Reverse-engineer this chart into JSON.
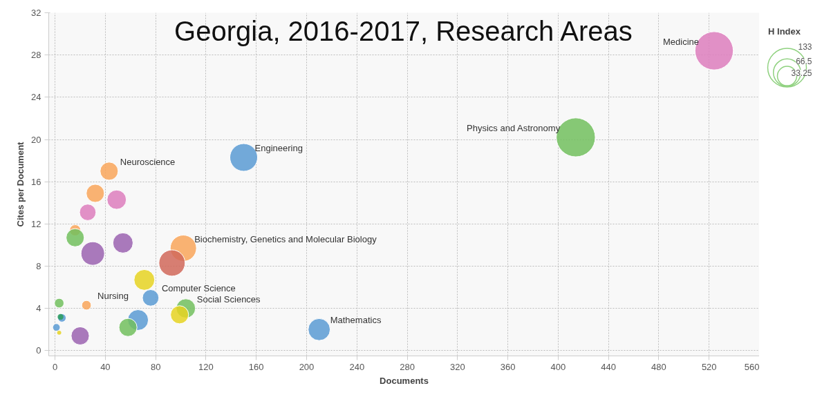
{
  "chart_data": {
    "type": "bubble",
    "title": "Georgia, 2016-2017, Research Areas",
    "xlabel": "Documents",
    "ylabel": "Cites per Document",
    "legend_title": "H Index",
    "size_legend": [
      133,
      66.5,
      33.25
    ],
    "x": [
      524,
      414,
      150,
      43,
      32,
      49,
      26,
      16,
      16,
      30,
      54,
      102,
      93,
      71,
      76,
      104,
      99,
      210,
      66,
      58,
      20,
      3.3,
      25,
      5.5,
      4.4,
      1.1,
      3.3
    ],
    "values": [
      28.4,
      20.2,
      18.3,
      17.0,
      14.9,
      14.3,
      13.1,
      11.4,
      10.7,
      9.2,
      10.2,
      9.7,
      8.3,
      6.7,
      5.0,
      4.0,
      3.4,
      2.0,
      2.9,
      2.2,
      1.4,
      4.5,
      4.3,
      3.1,
      3.2,
      2.2,
      1.7
    ],
    "sizes": [
      130,
      135,
      68,
      29,
      29,
      33,
      24,
      11,
      29,
      49,
      36,
      61,
      61,
      38,
      24,
      33,
      29,
      43,
      38,
      29,
      29,
      8,
      8,
      6,
      3,
      4,
      1.5
    ],
    "colors": [
      "#dd7ebd",
      "#72c05e",
      "#5a9bd4",
      "#f9a65a",
      "#f9a65a",
      "#dd7ebd",
      "#dd7ebd",
      "#f9a65a",
      "#72c05e",
      "#9b63b0",
      "#9b63b0",
      "#f9a65a",
      "#d1695a",
      "#e6d422",
      "#5a9bd4",
      "#72c05e",
      "#e6d422",
      "#5a9bd4",
      "#5a9bd4",
      "#72c05e",
      "#9b63b0",
      "#72c05e",
      "#f9a65a",
      "#5a9bd4",
      "#2a9d5c",
      "#5a9bd4",
      "#e6d422"
    ],
    "annotations": [
      {
        "text": "Medicine",
        "x": 524,
        "y": 28.4
      },
      {
        "text": "Physics and Astronomy",
        "x": 414,
        "y": 20.2
      },
      {
        "text": "Engineering",
        "x": 150,
        "y": 18.3
      },
      {
        "text": "Neuroscience",
        "x": 43,
        "y": 17.0
      },
      {
        "text": "Biochemistry, Genetics and Molecular Biology",
        "x": 102,
        "y": 9.7
      },
      {
        "text": "Computer Science",
        "x": 76,
        "y": 5.0
      },
      {
        "text": "Social Sciences",
        "x": 104,
        "y": 4.0
      },
      {
        "text": "Mathematics",
        "x": 210,
        "y": 2.0
      },
      {
        "text": "Nursing",
        "x": 25,
        "y": 4.3
      }
    ],
    "xlim": [
      -5,
      560
    ],
    "xticks": [
      0,
      40,
      80,
      120,
      160,
      200,
      240,
      280,
      320,
      360,
      400,
      440,
      480,
      520,
      560
    ],
    "ylim": [
      -0.5,
      32
    ],
    "yticks": [
      0,
      4,
      8,
      12,
      16,
      20,
      24,
      28,
      32
    ],
    "grid": true,
    "marker": "circle"
  }
}
